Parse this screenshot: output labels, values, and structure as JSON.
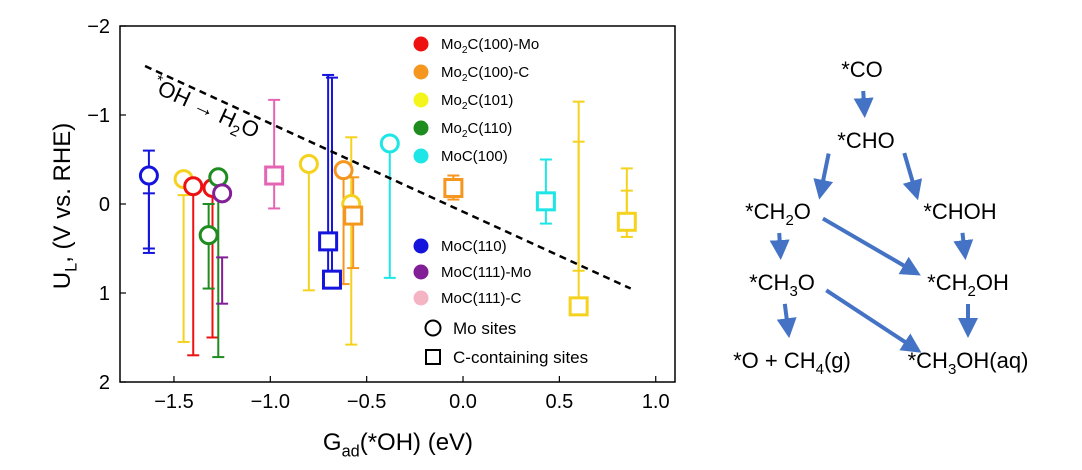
{
  "chart_data": {
    "type": "scatter",
    "xlabel": "G<sub>ad</sub>(*OH) (eV)",
    "ylabel": "U<sub>L</sub>, (V vs. RHE)",
    "xlim": [
      -1.78,
      1.1
    ],
    "ylim": [
      -2,
      2
    ],
    "y_inverted": true,
    "x_ticks": [
      {
        "value": -1.5,
        "label": "−1.5"
      },
      {
        "value": -1.0,
        "label": "−1.0"
      },
      {
        "value": -0.5,
        "label": "−0.5"
      },
      {
        "value": 0.0,
        "label": "0.0"
      },
      {
        "value": 0.5,
        "label": "0.5"
      },
      {
        "value": 1.0,
        "label": "1.0"
      }
    ],
    "y_ticks": [
      {
        "value": -2,
        "label": "−2"
      },
      {
        "value": -1,
        "label": "−1"
      },
      {
        "value": 0,
        "label": "0"
      },
      {
        "value": 1,
        "label": "1"
      },
      {
        "value": 2,
        "label": "2"
      }
    ],
    "trend_line": {
      "x": [
        -1.65,
        0.87
      ],
      "y": [
        -1.55,
        0.95
      ],
      "style": "dashed",
      "label": "<sup>*</sup>OH → H<sub>2</sub>O"
    },
    "legend": {
      "materials": [
        {
          "label": "Mo<sub>2</sub>C(100)-Mo",
          "color": "#ee1111"
        },
        {
          "label": "Mo<sub>2</sub>C(100)-C",
          "color": "#f5961e"
        },
        {
          "label": "Mo<sub>2</sub>C(101)",
          "color": "#f5f51e"
        },
        {
          "label": "Mo<sub>2</sub>C(110)",
          "color": "#1e8c1e"
        },
        {
          "label": "MoC(100)",
          "color": "#1ee6e6"
        },
        {
          "label": "MoC(110)",
          "color": "#1414dc"
        },
        {
          "label": "MoC(111)-Mo",
          "color": "#821e96"
        },
        {
          "label": "MoC(111)-C",
          "color": "#f5b4c3"
        }
      ],
      "shapes": [
        {
          "label": "Mo sites",
          "marker": "circle"
        },
        {
          "label": "C-containing sites",
          "marker": "square"
        }
      ]
    },
    "series": [
      {
        "color": "#1414dc",
        "marker": "circle",
        "x": -1.63,
        "y": -0.32,
        "err": [
          [
            -0.6,
            0.5
          ],
          [
            -0.12,
            0.55
          ]
        ]
      },
      {
        "color": "#1414dc",
        "marker": "square",
        "x": -0.7,
        "y": 0.42,
        "err": [
          [
            -1.45,
            0.9
          ]
        ]
      },
      {
        "color": "#1414dc",
        "marker": "square",
        "x": -0.68,
        "y": 0.85,
        "err": [
          [
            -1.42,
            0.85
          ]
        ]
      },
      {
        "color": "#f5d21e",
        "marker": "circle",
        "x": -1.45,
        "y": -0.28,
        "err": [
          [
            -0.1,
            1.55
          ]
        ]
      },
      {
        "color": "#f5d21e",
        "marker": "circle",
        "x": -0.8,
        "y": -0.45,
        "err": [
          [
            -0.48,
            0.97
          ]
        ]
      },
      {
        "color": "#f5d21e",
        "marker": "circle",
        "x": -0.58,
        "y": 0.0,
        "err": [
          [
            -0.75,
            1.58
          ]
        ]
      },
      {
        "color": "#f5d21e",
        "marker": "square",
        "x": 0.6,
        "y": 1.15,
        "err": [
          [
            -1.15,
            1.15
          ],
          [
            -0.7,
            0.75
          ]
        ]
      },
      {
        "color": "#f5d21e",
        "marker": "square",
        "x": 0.85,
        "y": 0.2,
        "err": [
          [
            -0.4,
            0.37
          ],
          [
            -0.15,
            0.25
          ]
        ]
      },
      {
        "color": "#ee1111",
        "marker": "circle",
        "x": -1.4,
        "y": -0.2,
        "err": [
          [
            -0.18,
            1.7
          ]
        ]
      },
      {
        "color": "#ee1111",
        "marker": "circle",
        "x": -1.3,
        "y": -0.18,
        "err": [
          [
            -0.15,
            1.5
          ]
        ]
      },
      {
        "color": "#1e8c1e",
        "marker": "circle",
        "x": -1.27,
        "y": -0.3,
        "err": [
          [
            -0.3,
            1.72
          ]
        ]
      },
      {
        "color": "#1e8c1e",
        "marker": "circle",
        "x": -1.32,
        "y": 0.35,
        "err": [
          [
            0.0,
            0.95
          ]
        ]
      },
      {
        "color": "#821e96",
        "marker": "circle",
        "x": -1.25,
        "y": -0.12,
        "err": [
          [
            0.6,
            1.12
          ]
        ]
      },
      {
        "color": "#e664b4",
        "marker": "square",
        "x": -0.98,
        "y": -0.32,
        "err": [
          [
            -1.17,
            0.05
          ]
        ]
      },
      {
        "color": "#f5961e",
        "marker": "circle",
        "x": -0.62,
        "y": -0.38,
        "err": [
          [
            -0.42,
            0.9
          ]
        ]
      },
      {
        "color": "#f5961e",
        "marker": "square",
        "x": -0.57,
        "y": 0.13,
        "err": [
          [
            -0.3,
            0.72
          ]
        ]
      },
      {
        "color": "#f5961e",
        "marker": "square",
        "x": -0.05,
        "y": -0.18,
        "err": [
          [
            -0.32,
            -0.05
          ]
        ]
      },
      {
        "color": "#1ee6e6",
        "marker": "circle",
        "x": -0.38,
        "y": -0.68,
        "err": [
          [
            -0.62,
            0.83
          ]
        ]
      },
      {
        "color": "#1ee6e6",
        "marker": "square",
        "x": 0.43,
        "y": -0.03,
        "err": [
          [
            -0.5,
            0.22
          ]
        ]
      }
    ]
  },
  "scheme": {
    "nodes": [
      {
        "id": "co",
        "label": "*CO"
      },
      {
        "id": "cho",
        "label": "*CHO"
      },
      {
        "id": "ch2o",
        "label": "*CH<sub>2</sub>O"
      },
      {
        "id": "choh",
        "label": "*CHOH"
      },
      {
        "id": "ch3o",
        "label": "*CH<sub>3</sub>O"
      },
      {
        "id": "ch2oh",
        "label": "*CH<sub>2</sub>OH"
      },
      {
        "id": "o_ch4",
        "label": "*O + CH<sub>4</sub>(g)"
      },
      {
        "id": "ch3oh",
        "label": "*CH<sub>3</sub>OH(aq)"
      }
    ],
    "edges": [
      [
        "co",
        "cho"
      ],
      [
        "cho",
        "ch2o"
      ],
      [
        "cho",
        "choh"
      ],
      [
        "ch2o",
        "ch3o"
      ],
      [
        "ch2o",
        "ch2oh"
      ],
      [
        "choh",
        "ch2oh"
      ],
      [
        "ch3o",
        "o_ch4"
      ],
      [
        "ch3o",
        "ch3oh"
      ],
      [
        "ch2oh",
        "ch3oh"
      ]
    ],
    "arrow_color": "#4472c4"
  }
}
